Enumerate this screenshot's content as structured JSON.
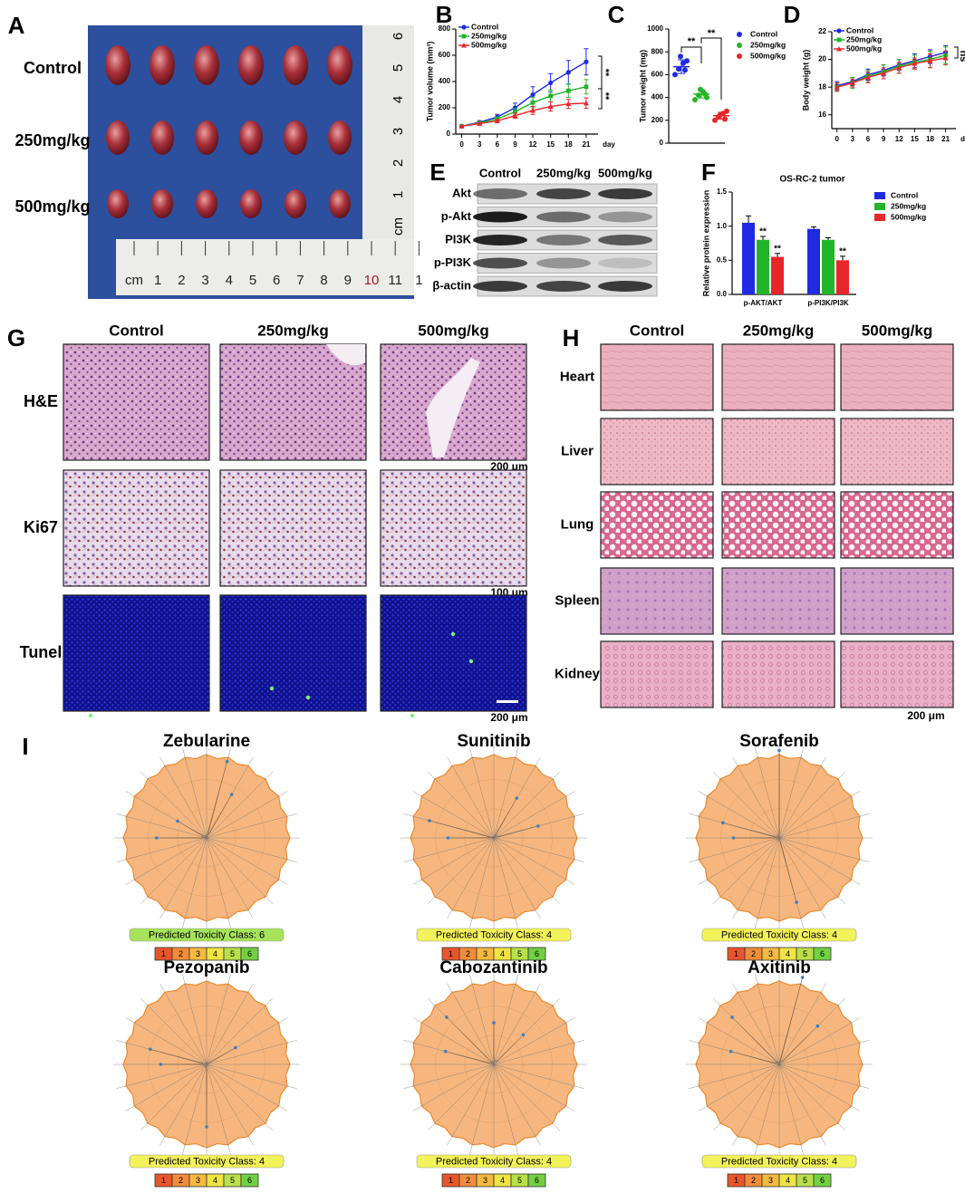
{
  "panel_labels": [
    "A",
    "B",
    "C",
    "D",
    "E",
    "F",
    "G",
    "H",
    "I"
  ],
  "panel_a": {
    "rows": [
      "Control",
      "250mg/kg",
      "500mg/kg"
    ],
    "ruler_h": [
      "cm",
      "1",
      "2",
      "3",
      "4",
      "5",
      "6",
      "7",
      "8",
      "9",
      "10",
      "11",
      "1"
    ],
    "ruler_v": [
      "6",
      "5",
      "4",
      "3",
      "2",
      "1",
      "cm"
    ]
  },
  "chart_data": [
    {
      "type": "line",
      "ylabel": "Tumor volume (mm³)",
      "xlabel": "day",
      "x": [
        0,
        3,
        6,
        9,
        12,
        15,
        18,
        21
      ],
      "xlim": [
        -1,
        23
      ],
      "xticks": [
        0,
        3,
        6,
        9,
        12,
        15,
        18,
        21
      ],
      "ylim": [
        0,
        800
      ],
      "yticks": [
        0,
        200,
        400,
        600,
        800
      ],
      "series": [
        {
          "name": "Control",
          "color": "#1f2be0",
          "values": [
            60,
            90,
            130,
            200,
            300,
            390,
            470,
            550
          ],
          "errors": [
            8,
            12,
            20,
            35,
            60,
            70,
            90,
            100
          ]
        },
        {
          "name": "250mg/kg",
          "color": "#22b52a",
          "values": [
            60,
            85,
            115,
            170,
            240,
            290,
            330,
            360
          ],
          "errors": [
            6,
            10,
            15,
            25,
            40,
            45,
            50,
            55
          ]
        },
        {
          "name": "500mg/kg",
          "color": "#e8262a",
          "values": [
            60,
            80,
            100,
            140,
            180,
            210,
            230,
            235
          ],
          "errors": [
            5,
            8,
            12,
            20,
            30,
            35,
            35,
            40
          ]
        }
      ],
      "annotations": [
        "**",
        "**"
      ]
    },
    {
      "type": "strip",
      "ylabel": "Tumor weight (mg)",
      "ylim": [
        0,
        1000
      ],
      "yticks": [
        0,
        200,
        400,
        600,
        800,
        1000
      ],
      "series": [
        {
          "name": "Control",
          "color": "#1f2be0",
          "values": [
            600,
            650,
            700,
            720,
            760,
            640
          ],
          "mean": 670,
          "error": 60
        },
        {
          "name": "250mg/kg",
          "color": "#22b52a",
          "values": [
            380,
            420,
            450,
            400,
            470,
            430
          ],
          "mean": 430,
          "error": 35
        },
        {
          "name": "500mg/kg",
          "color": "#e8262a",
          "values": [
            200,
            230,
            260,
            280,
            250,
            210
          ],
          "mean": 240,
          "error": 30
        }
      ],
      "annotations": [
        "**",
        "**"
      ]
    },
    {
      "type": "line",
      "ylabel": "Body weight (g)",
      "xlabel": "day",
      "x": [
        0,
        3,
        6,
        9,
        12,
        15,
        18,
        21
      ],
      "xlim": [
        -1,
        23
      ],
      "xticks": [
        0,
        3,
        6,
        9,
        12,
        15,
        18,
        21
      ],
      "ylim": [
        15,
        22
      ],
      "yticks": [
        16,
        18,
        20,
        22
      ],
      "series": [
        {
          "name": "Control",
          "color": "#1f2be0",
          "values": [
            18.1,
            18.4,
            18.9,
            19.2,
            19.6,
            19.9,
            20.2,
            20.5
          ],
          "errors": [
            0.3,
            0.3,
            0.4,
            0.4,
            0.4,
            0.5,
            0.5,
            0.5
          ]
        },
        {
          "name": "250mg/kg",
          "color": "#22b52a",
          "values": [
            18.0,
            18.3,
            18.8,
            19.1,
            19.5,
            19.8,
            20.0,
            20.3
          ],
          "errors": [
            0.3,
            0.4,
            0.4,
            0.5,
            0.5,
            0.5,
            0.6,
            0.6
          ]
        },
        {
          "name": "500mg/kg",
          "color": "#e8262a",
          "values": [
            18.0,
            18.3,
            18.7,
            19.0,
            19.4,
            19.7,
            19.9,
            20.1
          ],
          "errors": [
            0.3,
            0.3,
            0.4,
            0.4,
            0.4,
            0.4,
            0.5,
            0.5
          ]
        }
      ],
      "annotations": [
        "ns"
      ]
    },
    {
      "type": "bar",
      "title": "OS-RC-2 tumor",
      "ylabel": "Relative protein expression",
      "categories": [
        "p-AKT/AKT",
        "p-PI3K/PI3K"
      ],
      "ylim": [
        0,
        1.5
      ],
      "yticks": [
        {
          "value": 0,
          "label": "0.0"
        },
        {
          "value": 0.5,
          "label": "0.5"
        },
        {
          "value": 1,
          "label": "1.0"
        },
        {
          "value": 1.5,
          "label": "1.5"
        }
      ],
      "series": [
        {
          "name": "Control",
          "color": "#1f2be0",
          "values": [
            1.05,
            0.96
          ],
          "errors": [
            0.1,
            0.03
          ]
        },
        {
          "name": "250mg/kg",
          "color": "#22b52a",
          "values": [
            0.8,
            0.8
          ],
          "errors": [
            0.05,
            0.03
          ]
        },
        {
          "name": "500mg/kg",
          "color": "#e8262a",
          "values": [
            0.55,
            0.5
          ],
          "errors": [
            0.05,
            0.06
          ]
        }
      ],
      "annotations": [
        "**",
        "**",
        "**"
      ]
    }
  ],
  "panel_e": {
    "columns": [
      "Control",
      "250mg/kg",
      "500mg/kg"
    ],
    "rows": [
      "Akt",
      "p-Akt",
      "PI3K",
      "p-PI3K",
      "β-actin"
    ]
  },
  "panel_g": {
    "columns": [
      "Control",
      "250mg/kg",
      "500mg/kg"
    ],
    "rows": [
      "H&E",
      "Ki67",
      "Tunel"
    ],
    "scale_bars": [
      "200 μm",
      "100 μm",
      "200 μm"
    ]
  },
  "panel_h": {
    "columns": [
      "Control",
      "250mg/kg",
      "500mg/kg"
    ],
    "rows": [
      "Heart",
      "Liver",
      "Lung",
      "Spleen",
      "Kidney"
    ],
    "scale_bar": "200 μm"
  },
  "panel_i": {
    "drugs": [
      {
        "name": "Zebularine",
        "toxicity": "Predicted Toxicity Class: 6",
        "label_color": "#a6e35a"
      },
      {
        "name": "Sunitinib",
        "toxicity": "Predicted Toxicity Class: 4",
        "label_color": "#f2f25a"
      },
      {
        "name": "Sorafenib",
        "toxicity": "Predicted Toxicity Class: 4",
        "label_color": "#f2f25a"
      },
      {
        "name": "Pezopanib",
        "toxicity": "Predicted Toxicity Class: 4",
        "label_color": "#f2f25a"
      },
      {
        "name": "Cabozantinib",
        "toxicity": "Predicted Toxicity Class: 4",
        "label_color": "#f2f25a"
      },
      {
        "name": "Axitinib",
        "toxicity": "Predicted Toxicity Class: 4",
        "label_color": "#f2f25a"
      }
    ],
    "classes": [
      1,
      2,
      3,
      4,
      5,
      6
    ],
    "class_colors": [
      "#e9552b",
      "#f08c3a",
      "#f4b93f",
      "#efe443",
      "#b9e04a",
      "#73d043"
    ]
  }
}
